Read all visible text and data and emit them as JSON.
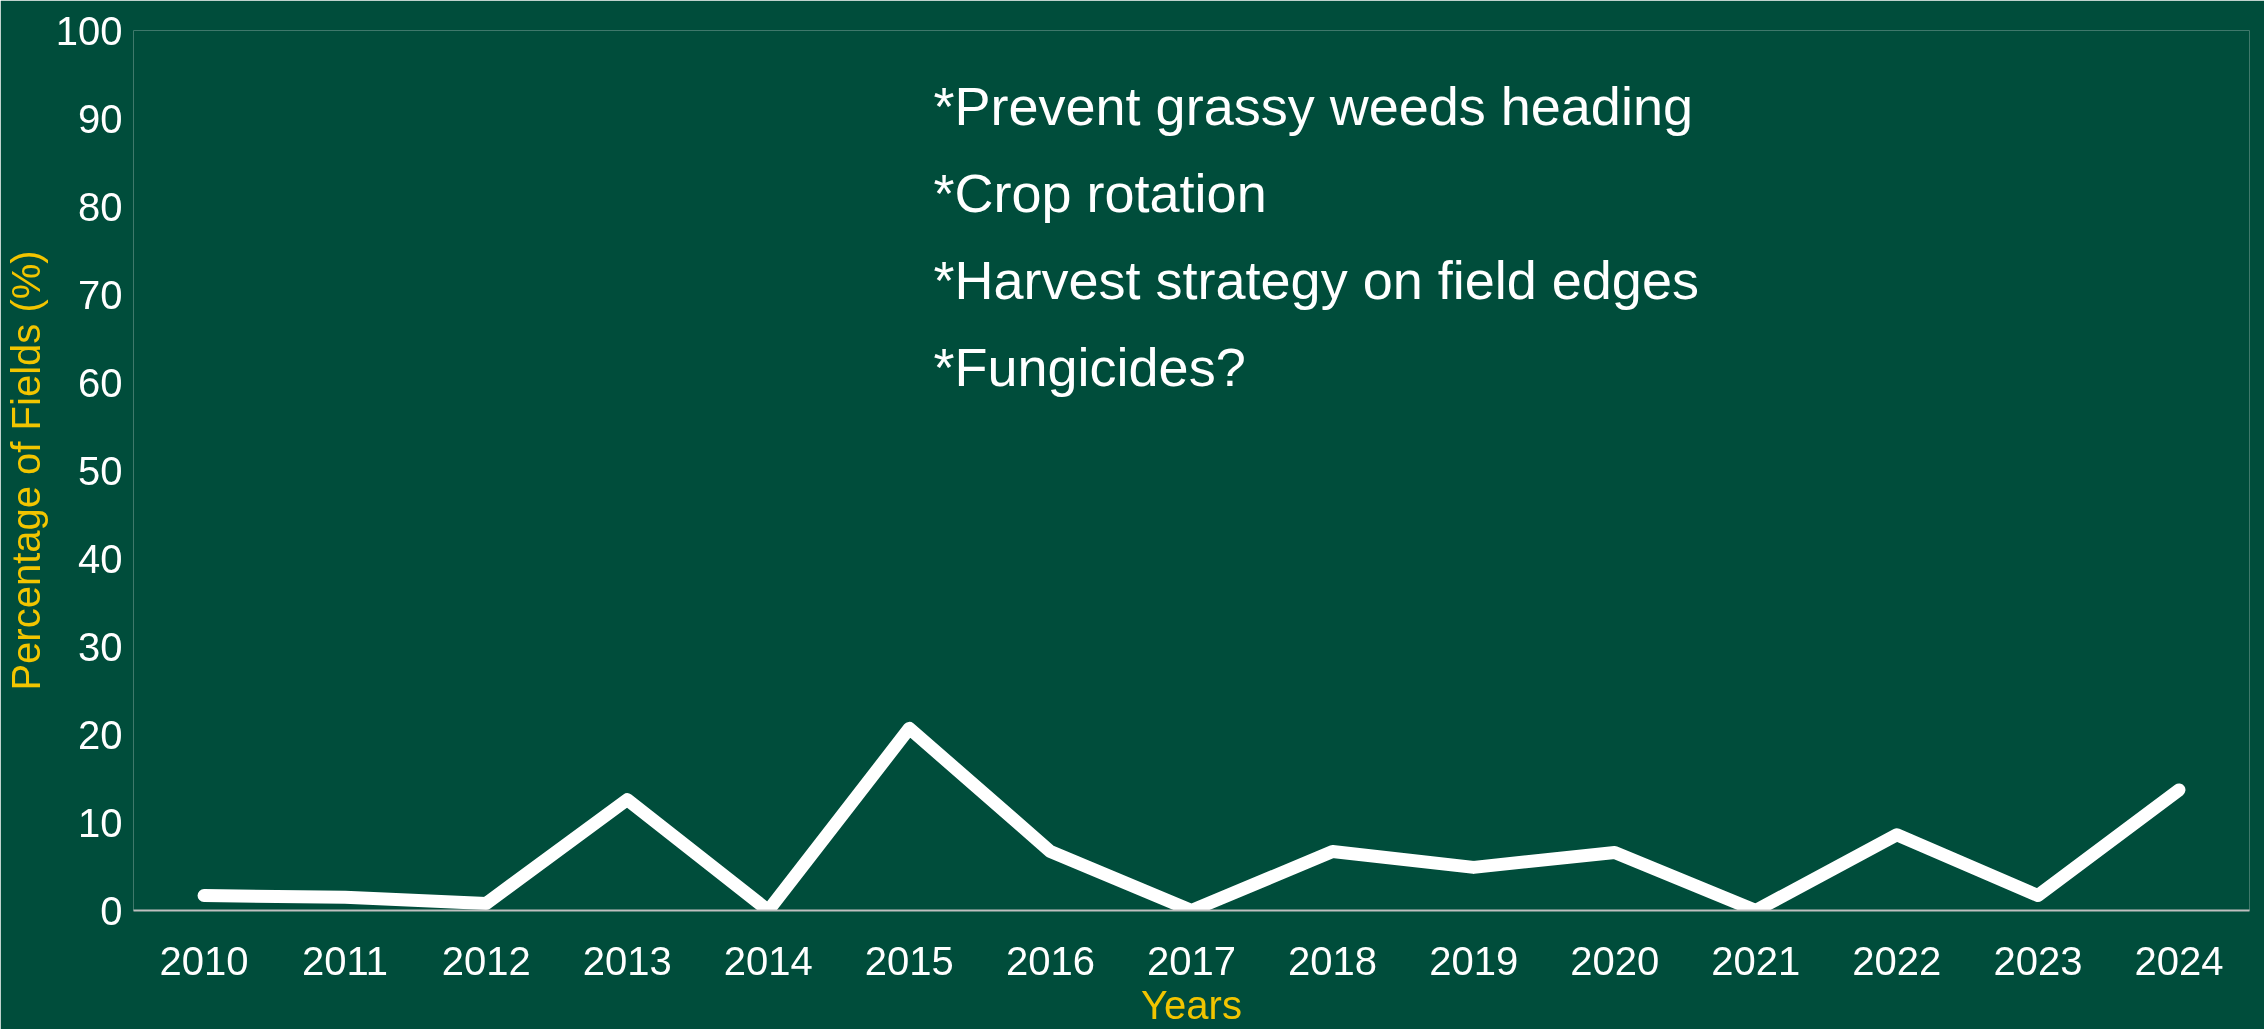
{
  "chart_data": {
    "type": "line",
    "xlabel": "Years",
    "ylabel": "Percentage of Fields (%)",
    "categories": [
      "2010",
      "2011",
      "2012",
      "2013",
      "2014",
      "2015",
      "2016",
      "2017",
      "2018",
      "2019",
      "2020",
      "2021",
      "2022",
      "2023",
      "2024"
    ],
    "series": [
      {
        "color": "#ffffff",
        "values": [
          1.7,
          1.5,
          0.8,
          12.6,
          0,
          20.7,
          6.7,
          0,
          6.7,
          4.9,
          6.6,
          0,
          8.6,
          1.7,
          13.7
        ]
      }
    ],
    "ylim": [
      0,
      100
    ],
    "yticks": [
      0,
      10,
      20,
      30,
      40,
      50,
      60,
      70,
      80,
      90,
      100
    ],
    "grid": false,
    "marker": "none",
    "line_style": "solid",
    "annotations": [
      "*Prevent grassy weeds heading",
      "*Crop rotation",
      "*Harvest strategy on field edges",
      "*Fungicides?"
    ]
  }
}
